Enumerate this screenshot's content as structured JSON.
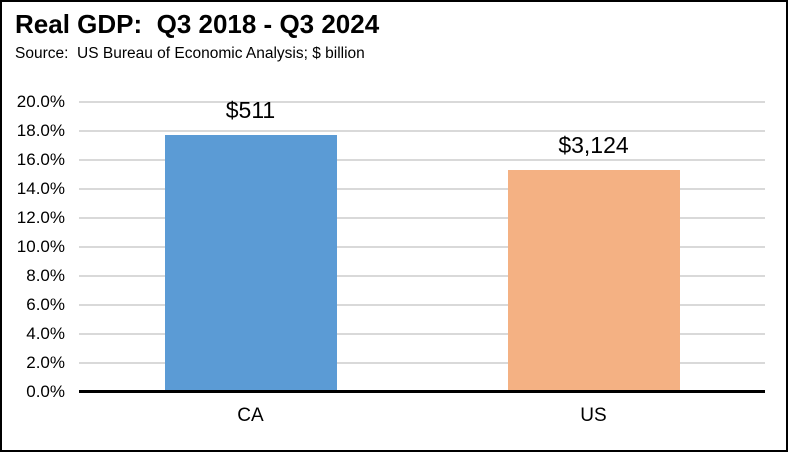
{
  "chart_data": {
    "type": "bar",
    "title": "Real GDP:  Q3 2018 - Q3 2024",
    "subtitle": "Source:  US Bureau of Economic Analysis; $ billion",
    "categories": [
      "CA",
      "US"
    ],
    "values_pct": [
      17.7,
      15.3
    ],
    "bar_labels": [
      "$511",
      "$3,124"
    ],
    "bar_colors": [
      "#5B9BD5",
      "#F4B183"
    ],
    "xlabel": "",
    "ylabel": "",
    "ylim": [
      0,
      20
    ],
    "ytick_step_pct": 2,
    "value_axis_format": "percent",
    "yticks": [
      "20.0%",
      "18.0%",
      "16.0%",
      "14.0%",
      "12.0%",
      "10.0%",
      "8.0%",
      "6.0%",
      "4.0%",
      "2.0%",
      "0.0%"
    ],
    "grid": true,
    "gridline_color": "#D9D9D9",
    "axis_color": "#000000",
    "border_color": "#000000",
    "background_color": "#FFFFFF",
    "legend": "none"
  }
}
